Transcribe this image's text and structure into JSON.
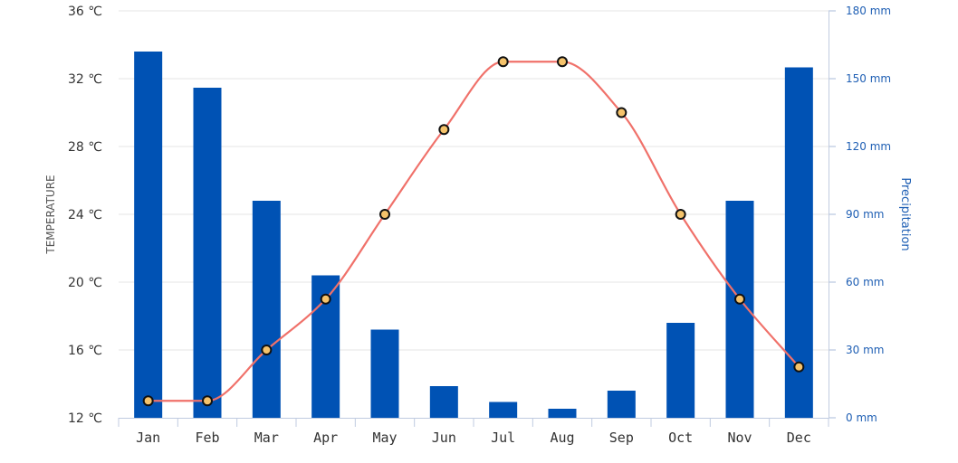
{
  "chart_data": {
    "type": "bar+line",
    "categories": [
      "Jan",
      "Feb",
      "Mar",
      "Apr",
      "May",
      "Jun",
      "Jul",
      "Aug",
      "Sep",
      "Oct",
      "Nov",
      "Dec"
    ],
    "series": [
      {
        "name": "Precipitation",
        "type": "bar",
        "axis": "right",
        "color": "#0052b4",
        "values": [
          162,
          146,
          96,
          63,
          39,
          14,
          7,
          4,
          12,
          42,
          96,
          155
        ]
      },
      {
        "name": "Temperature",
        "type": "line",
        "axis": "left",
        "color": "#f0716a",
        "marker_fill": "#f5c36b",
        "values": [
          13,
          13,
          16,
          19,
          24,
          29,
          33,
          33,
          30,
          24,
          19,
          15
        ]
      }
    ],
    "left_axis": {
      "label": "TEMPERATURE",
      "range": [
        12,
        36
      ],
      "ticks": [
        12,
        16,
        20,
        24,
        28,
        32,
        36
      ],
      "tick_labels": [
        "12 ℃",
        "16 ℃",
        "20 ℃",
        "24 ℃",
        "28 ℃",
        "32 ℃",
        "36 ℃"
      ]
    },
    "right_axis": {
      "label": "Precipitation",
      "range": [
        0,
        180
      ],
      "ticks": [
        0,
        30,
        60,
        90,
        120,
        150,
        180
      ],
      "tick_labels": [
        "0 mm",
        "30 mm",
        "60 mm",
        "90 mm",
        "120 mm",
        "150 mm",
        "180 mm"
      ]
    },
    "grid": true,
    "legend": "none"
  }
}
